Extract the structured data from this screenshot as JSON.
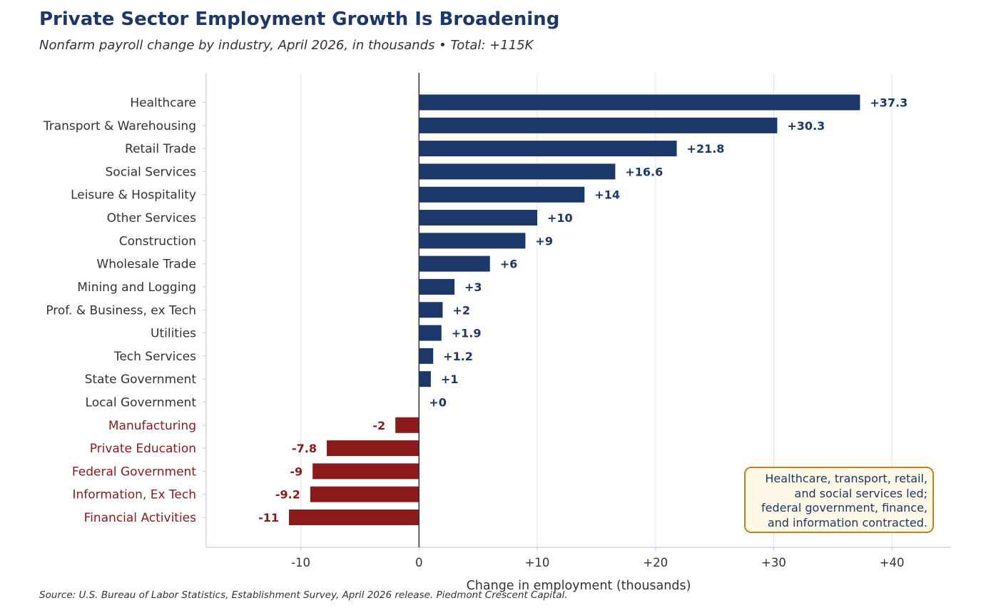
{
  "colors": {
    "positive": "#1c3769",
    "negative": "#8b1a1a",
    "label": "#333333",
    "grid": "#dde1ec",
    "zero_line": "#333333",
    "spine": "#c5cbe0",
    "annotation_border": "#b8861b",
    "annotation_bg": "#fff8e6"
  },
  "chart_data": {
    "type": "bar",
    "orientation": "horizontal",
    "title": "Private Sector Employment Growth Is Broadening",
    "subtitle": "Nonfarm payroll change by industry, April 2026, in thousands  •  Total: +115K",
    "xlabel": "Change in employment (thousands)",
    "ylabel": "",
    "xlim": [
      -18,
      45
    ],
    "xticks": [
      -10,
      0,
      10,
      20,
      30,
      40
    ],
    "xtick_labels": [
      "-10",
      "0",
      "+10",
      "+20",
      "+30",
      "+40"
    ],
    "grid": "vertical",
    "categories": [
      "Healthcare",
      "Transport & Warehousing",
      "Retail Trade",
      "Social Services",
      "Leisure & Hospitality",
      "Other Services",
      "Construction",
      "Wholesale Trade",
      "Mining and Logging",
      "Prof. & Business, ex Tech",
      "Utilities",
      "Tech Services",
      "State Government",
      "Local Government",
      "Manufacturing",
      "Private Education",
      "Federal Government",
      "Information, Ex Tech",
      "Financial Activities"
    ],
    "values": [
      37.3,
      30.3,
      21.8,
      16.6,
      14,
      10,
      9,
      6,
      3,
      2,
      1.9,
      1.2,
      1,
      0,
      -2,
      -7.8,
      -9,
      -9.2,
      -11
    ],
    "data_labels": [
      "+37.3",
      "+30.3",
      "+21.8",
      "+16.6",
      "+14",
      "+10",
      "+9",
      "+6",
      "+3",
      "+2",
      "+1.9",
      "+1.2",
      "+1",
      "+0",
      "-2",
      "-7.8",
      "-9",
      "-9.2",
      "-11"
    ],
    "annotation": [
      "Healthcare, transport, retail,",
      "and social services led;",
      "federal government, finance,",
      "and information contracted."
    ],
    "source": "Source: U.S. Bureau of Labor Statistics, Establishment Survey, April 2026 release. Piedmont Crescent Capital."
  }
}
